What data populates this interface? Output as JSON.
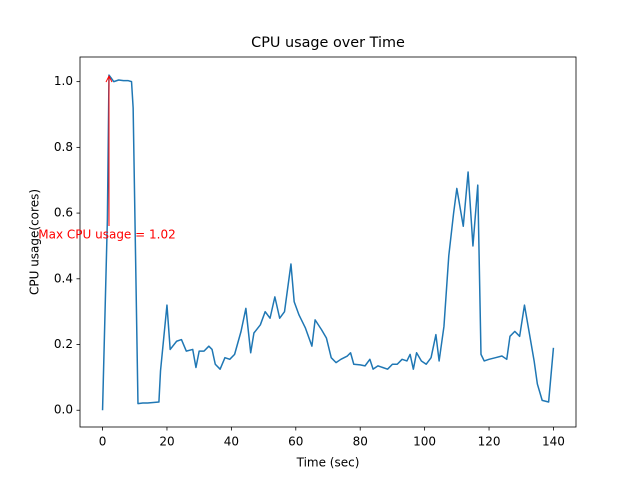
{
  "chart_data": {
    "type": "line",
    "title": "CPU usage over Time",
    "x_label": "Time (sec)",
    "y_label": "CPU usage(cores)",
    "annotation": "Max CPU usage = 1.02",
    "annotation_color": "#ff0000",
    "x": [
      0,
      1.5,
      2,
      3.5,
      5,
      6.5,
      8,
      9,
      9.5,
      11,
      12.5,
      14,
      17.5,
      18,
      20,
      21,
      23,
      24.5,
      26,
      28,
      29,
      30,
      31.5,
      33,
      34,
      35,
      36.5,
      38,
      39.5,
      41,
      43,
      44.5,
      46,
      47,
      49,
      50.5,
      52,
      53.5,
      55,
      56.5,
      58.5,
      59.5,
      61,
      63,
      65,
      66,
      68,
      69.5,
      71,
      72.5,
      74,
      76,
      77,
      78,
      80,
      81.5,
      83,
      84,
      85.5,
      87,
      88.5,
      90,
      91.5,
      93,
      94.5,
      95.5,
      96.5,
      97.5,
      99,
      100.5,
      102,
      103.5,
      104.5,
      106,
      107.5,
      109,
      110,
      112,
      113.5,
      115,
      116.5,
      117.5,
      118.5,
      120,
      122,
      124,
      125.5,
      126.5,
      128,
      129.5,
      131,
      132.5,
      134,
      135,
      136.5,
      138.5,
      140
    ],
    "series": [
      {
        "name": "CPU usage",
        "color": "#1f77b4",
        "values": [
          0,
          0.58,
          1.02,
          1.0,
          1.005,
          1.003,
          1.003,
          1.0,
          0.92,
          0.02,
          0.022,
          0.022,
          0.025,
          0.12,
          0.32,
          0.185,
          0.21,
          0.215,
          0.18,
          0.185,
          0.13,
          0.18,
          0.18,
          0.195,
          0.185,
          0.14,
          0.125,
          0.16,
          0.155,
          0.17,
          0.24,
          0.31,
          0.175,
          0.235,
          0.26,
          0.3,
          0.28,
          0.345,
          0.28,
          0.3,
          0.445,
          0.33,
          0.29,
          0.25,
          0.195,
          0.275,
          0.245,
          0.22,
          0.16,
          0.145,
          0.155,
          0.165,
          0.175,
          0.14,
          0.138,
          0.135,
          0.155,
          0.125,
          0.135,
          0.13,
          0.125,
          0.14,
          0.14,
          0.155,
          0.15,
          0.17,
          0.125,
          0.175,
          0.15,
          0.14,
          0.16,
          0.23,
          0.15,
          0.255,
          0.47,
          0.6,
          0.675,
          0.56,
          0.725,
          0.5,
          0.685,
          0.17,
          0.15,
          0.155,
          0.16,
          0.165,
          0.155,
          0.225,
          0.24,
          0.225,
          0.32,
          0.235,
          0.15,
          0.08,
          0.03,
          0.025,
          0.19
        ]
      }
    ],
    "xlim": [
      -7,
      147
    ],
    "ylim": [
      -0.051,
      1.075
    ],
    "xticks": [
      0,
      20,
      40,
      60,
      80,
      100,
      120,
      140
    ],
    "yticks": [
      {
        "value": 0,
        "label": "0.0"
      },
      {
        "value": 0.2,
        "label": "0.2"
      },
      {
        "value": 0.4,
        "label": "0.4"
      },
      {
        "value": 0.6,
        "label": "0.6"
      },
      {
        "value": 0.8,
        "label": "0.8"
      },
      {
        "value": 1.0,
        "label": "1.0"
      }
    ],
    "grid": false
  }
}
